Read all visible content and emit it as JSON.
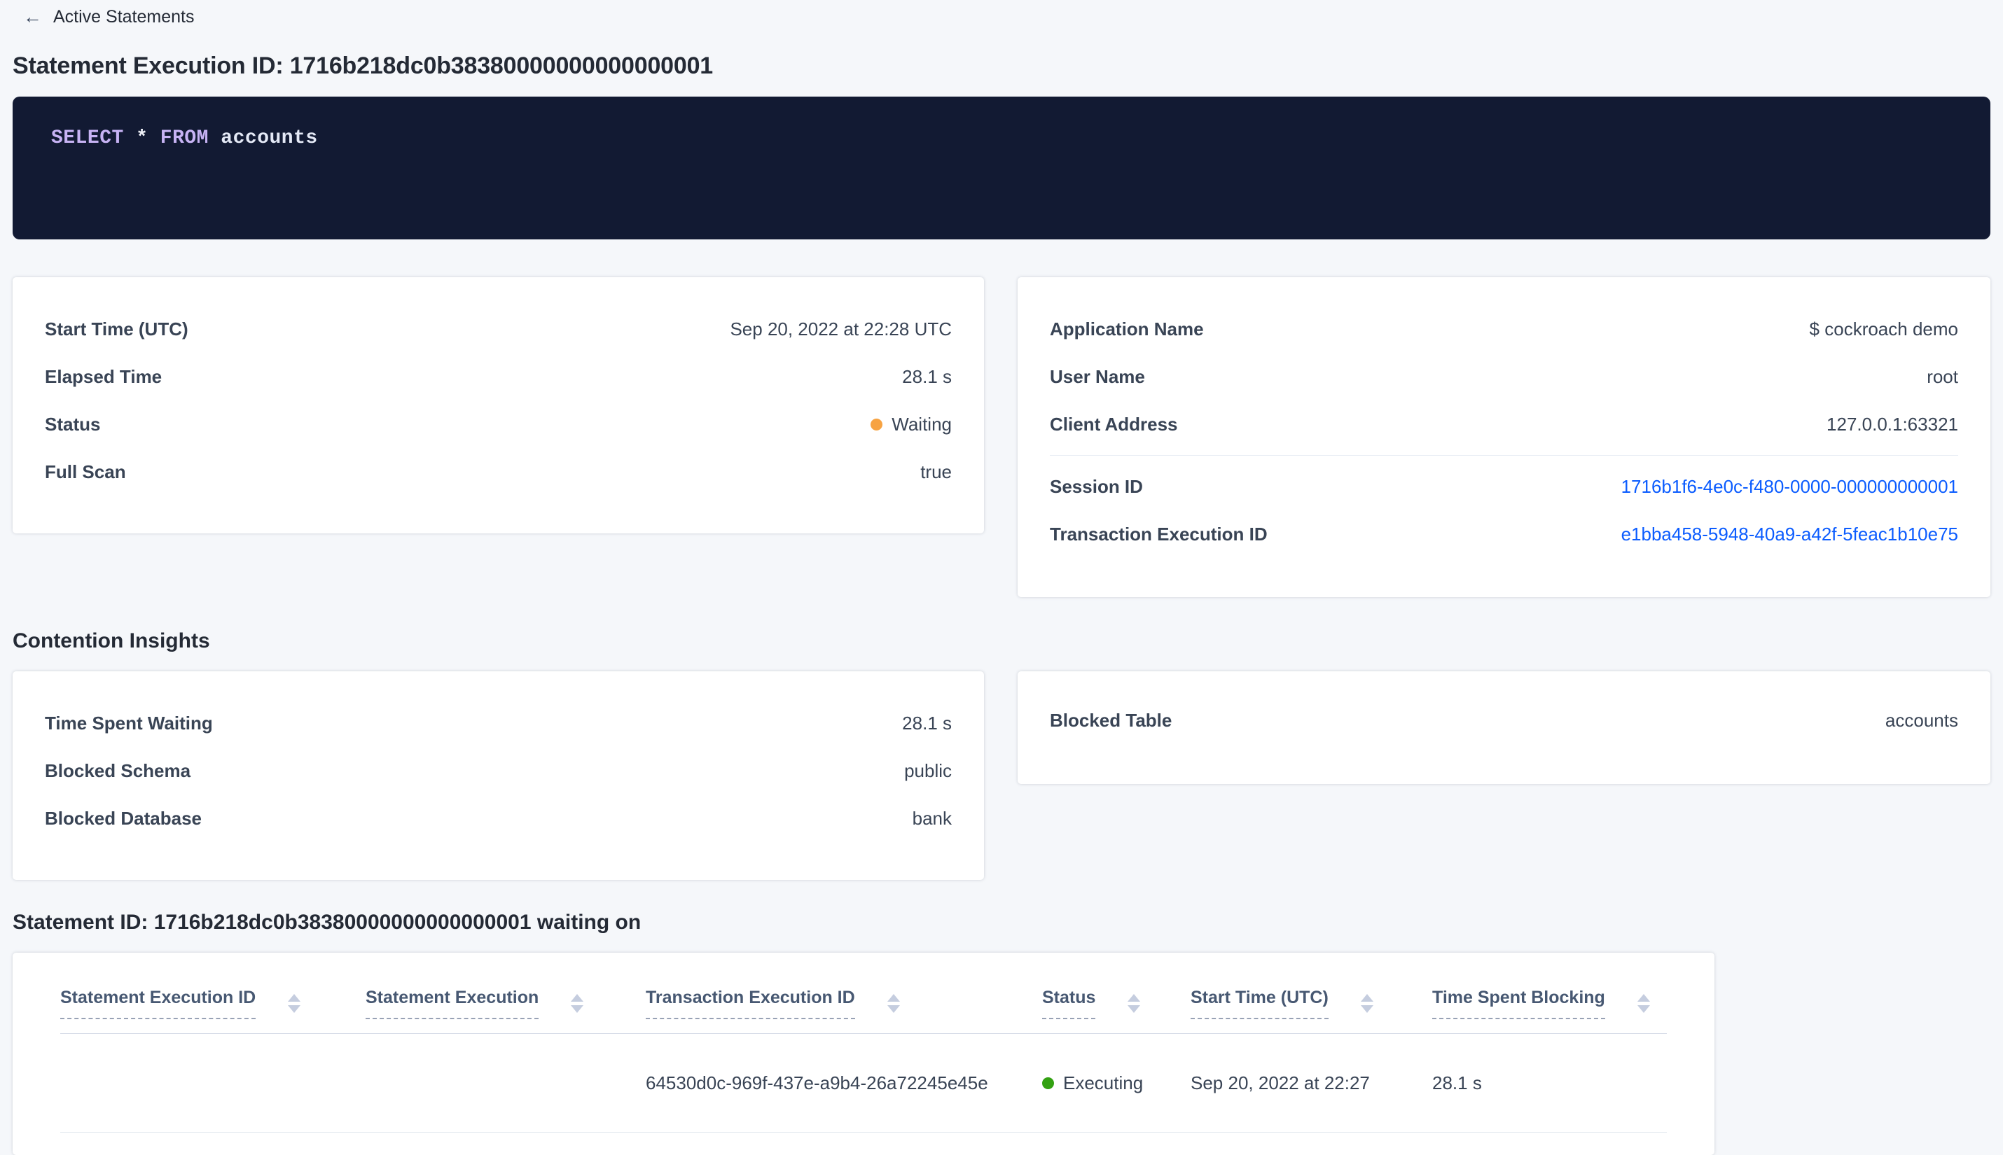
{
  "colors": {
    "link": "#0b5cff",
    "status_waiting": "#f7a342",
    "status_executing": "#33a112",
    "sql_keyword": "#c7b3f4",
    "sql_text": "#eef1f8"
  },
  "icons": {
    "back_arrow": "←"
  },
  "header": {
    "back_label": "Active Statements",
    "title": "Statement Execution ID: 1716b218dc0b38380000000000000001"
  },
  "sql": {
    "select_kw": "SELECT",
    "star": "*",
    "from_kw": "FROM",
    "table_name": "accounts"
  },
  "overview_card": {
    "rows": [
      {
        "label": "Start Time (UTC)",
        "value": "Sep 20, 2022 at 22:28 UTC"
      },
      {
        "label": "Elapsed Time",
        "value": "28.1 s"
      },
      {
        "label": "Status",
        "value": "Waiting"
      },
      {
        "label": "Full Scan",
        "value": "true"
      }
    ]
  },
  "session_card": {
    "rows": [
      {
        "label": "Application Name",
        "value": "$ cockroach demo"
      },
      {
        "label": "User Name",
        "value": "root"
      },
      {
        "label": "Client Address",
        "value": "127.0.0.1:63321"
      },
      {
        "label": "Session ID",
        "value": "1716b1f6-4e0c-f480-0000-000000000001"
      },
      {
        "label": "Transaction Execution ID",
        "value": "e1bba458-5948-40a9-a42f-5feac1b10e75"
      }
    ]
  },
  "contention": {
    "heading": "Contention Insights",
    "left_card": {
      "rows": [
        {
          "label": "Time Spent Waiting",
          "value": "28.1 s"
        },
        {
          "label": "Blocked Schema",
          "value": "public"
        },
        {
          "label": "Blocked Database",
          "value": "bank"
        }
      ]
    },
    "right_card": {
      "rows": [
        {
          "label": "Blocked Table",
          "value": "accounts"
        }
      ]
    }
  },
  "waiting_section": {
    "heading": "Statement ID: 1716b218dc0b38380000000000000001 waiting on",
    "table": {
      "columns": [
        {
          "label": "Statement Execution ID"
        },
        {
          "label": "Statement Execution"
        },
        {
          "label": "Transaction Execution ID"
        },
        {
          "label": "Status"
        },
        {
          "label": "Start Time (UTC)"
        },
        {
          "label": "Time Spent Blocking"
        }
      ],
      "row": {
        "statement_execution_id": "",
        "statement_execution": "",
        "transaction_execution_id": "64530d0c-969f-437e-a9b4-26a72245e45e",
        "status": "Executing",
        "start_time": "Sep 20, 2022 at 22:27",
        "time_spent_blocking": "28.1 s"
      }
    }
  }
}
